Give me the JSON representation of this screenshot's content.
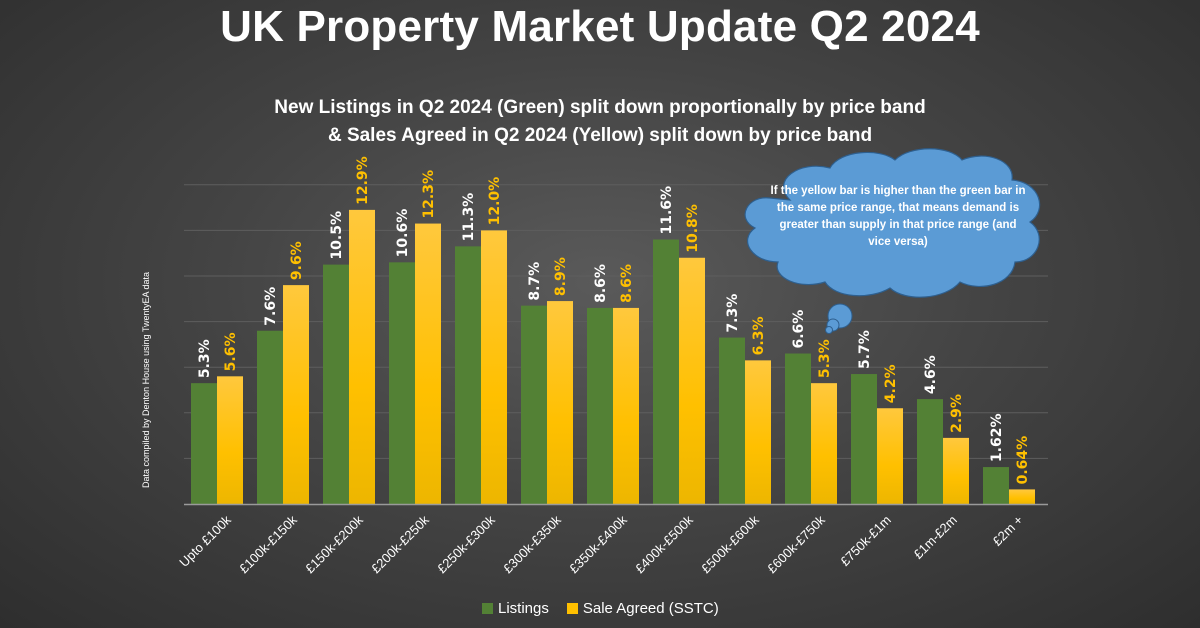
{
  "header": {
    "title": "UK Property Market Update Q2 2024",
    "subtitle_line1": "New Listings in Q2 2024 (Green) split down proportionally by price band",
    "subtitle_line2": "& Sales Agreed in Q2 2024 (Yellow) split down by price band"
  },
  "credit": "Data compiled by Denton House using TwentyEA data",
  "annotation": "If the yellow bar is higher than the green bar in the same price range, that means demand is greater than supply in that price range (and vice versa)",
  "colors": {
    "listings": "#538135",
    "sale_agreed": "#FFC000",
    "cloud": "#5B9BD5"
  },
  "chart_data": {
    "type": "bar",
    "title": "UK Property Market Update Q2 2024",
    "xlabel": "",
    "ylabel": "",
    "ylim": [
      0,
      14
    ],
    "grid": true,
    "legend_position": "bottom",
    "categories": [
      "Upto £100k",
      "£100k-£150k",
      "£150k-£200k",
      "£200k-£250k",
      "£250k-£300k",
      "£300k-£350k",
      "£350k-£400k",
      "£400k-£500k",
      "£500k-£600k",
      "£600k-£750k",
      "£750k-£1m",
      "£1m-£2m",
      "£2m +"
    ],
    "series": [
      {
        "name": "Listings",
        "values": [
          5.3,
          7.6,
          10.5,
          10.6,
          11.3,
          8.7,
          8.6,
          11.6,
          7.3,
          6.6,
          5.7,
          4.6,
          1.62
        ],
        "labels": [
          "5.3%",
          "7.6%",
          "10.5%",
          "10.6%",
          "11.3%",
          "8.7%",
          "8.6%",
          "11.6%",
          "7.3%",
          "6.6%",
          "5.7%",
          "4.6%",
          "1.62%"
        ]
      },
      {
        "name": "Sale Agreed (SSTC)",
        "values": [
          5.6,
          9.6,
          12.9,
          12.3,
          12.0,
          8.9,
          8.6,
          10.8,
          6.3,
          5.3,
          4.2,
          2.9,
          0.64
        ],
        "labels": [
          "5.6%",
          "9.6%",
          "12.9%",
          "12.3%",
          "12.0%",
          "8.9%",
          "8.6%",
          "10.8%",
          "6.3%",
          "5.3%",
          "4.2%",
          "2.9%",
          "0.64%"
        ]
      }
    ]
  }
}
